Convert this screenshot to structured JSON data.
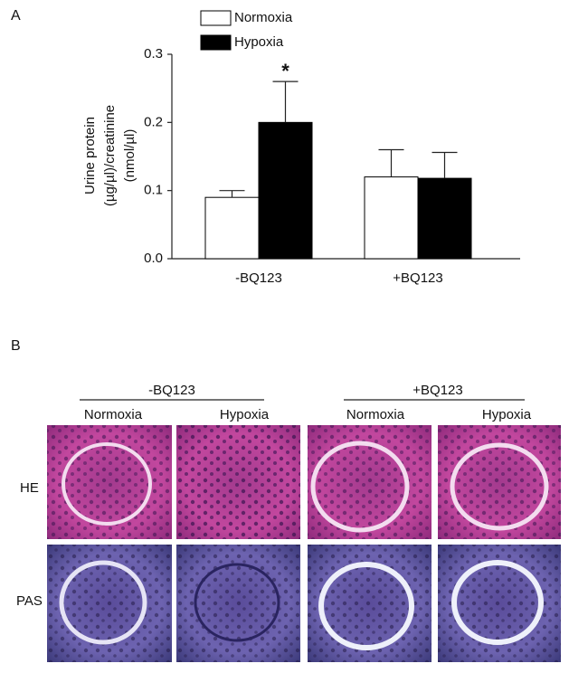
{
  "panel_a": {
    "label": "A"
  },
  "chart_data": {
    "type": "bar",
    "ylabel": [
      "Urine protein",
      "(µg/µl)/creatinine",
      "(nmol/µl)"
    ],
    "categories": [
      "-BQ123",
      "+BQ123"
    ],
    "series": [
      {
        "name": "Normoxia",
        "color": "#ffffff",
        "values": [
          0.09,
          0.12
        ],
        "errors": [
          0.01,
          0.04
        ]
      },
      {
        "name": "Hypoxia",
        "color": "#000000",
        "values": [
          0.2,
          0.118
        ],
        "errors": [
          0.06,
          0.038
        ]
      }
    ],
    "annotations": [
      "*"
    ],
    "ylim": [
      0,
      0.3
    ],
    "yticks": [
      {
        "value": 0,
        "label": "0.0"
      },
      0.1,
      0.2,
      0.3
    ],
    "grid": false
  },
  "panel_b": {
    "label": "B",
    "groups": [
      "-BQ123",
      "+BQ123"
    ],
    "columns": [
      "Normoxia",
      "Hypoxia",
      "Normoxia",
      "Hypoxia"
    ],
    "rows": [
      "HE",
      "PAS"
    ]
  }
}
